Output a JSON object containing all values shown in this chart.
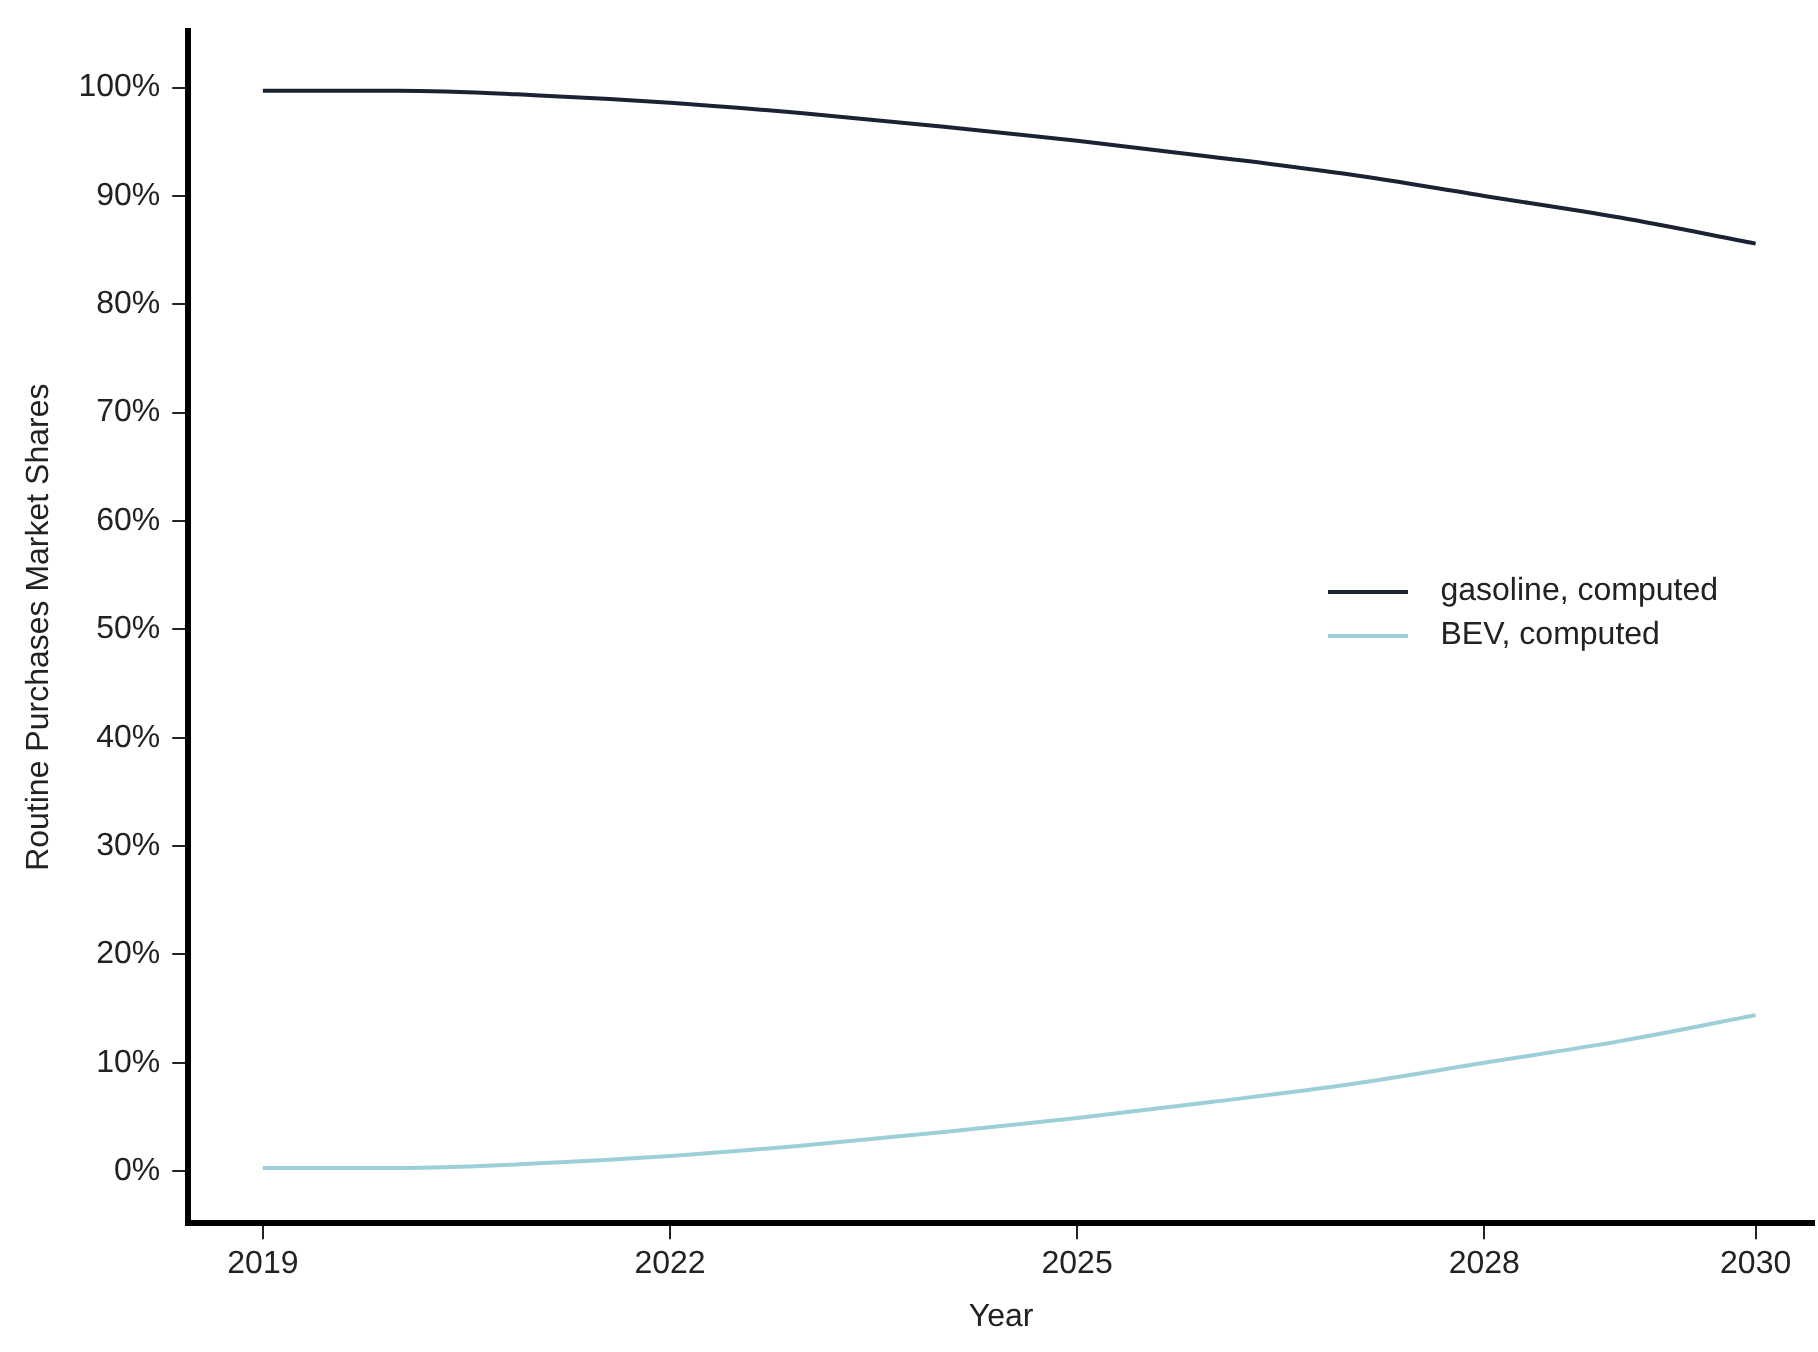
{
  "chart_data": {
    "type": "line",
    "xlabel": "Year",
    "ylabel": "Routine Purchases Market Shares",
    "x": [
      2019,
      2020,
      2021,
      2022,
      2023,
      2024,
      2025,
      2026,
      2027,
      2028,
      2029,
      2030
    ],
    "series": [
      {
        "name": "gasoline, computed",
        "color": "#1a2233",
        "values": [
          99.7,
          99.7,
          99.3,
          98.6,
          97.6,
          96.4,
          95.1,
          93.6,
          92,
          90,
          88,
          85.6
        ]
      },
      {
        "name": "BEV, computed",
        "color": "#9ccfd8",
        "values": [
          0.3,
          0.3,
          0.7,
          1.4,
          2.4,
          3.6,
          4.9,
          6.4,
          8,
          10,
          12,
          14.4
        ]
      }
    ],
    "xlim": [
      2018.45,
      2030.43
    ],
    "xticks": [
      2019,
      2022,
      2025,
      2028,
      2030
    ],
    "ylim": [
      -4.8,
      105.2
    ],
    "yticks": [
      {
        "value": 0,
        "label": "0%"
      },
      {
        "value": 10,
        "label": "10%"
      },
      {
        "value": 20,
        "label": "20%"
      },
      {
        "value": 30,
        "label": "30%"
      },
      {
        "value": 40,
        "label": "40%"
      },
      {
        "value": 50,
        "label": "50%"
      },
      {
        "value": 60,
        "label": "60%"
      },
      {
        "value": 70,
        "label": "70%"
      },
      {
        "value": 80,
        "label": "80%"
      },
      {
        "value": 90,
        "label": "90%"
      },
      {
        "value": 100,
        "label": "100%"
      }
    ],
    "grid": false,
    "legend": "right",
    "marker": "none",
    "line_style": "solid"
  }
}
